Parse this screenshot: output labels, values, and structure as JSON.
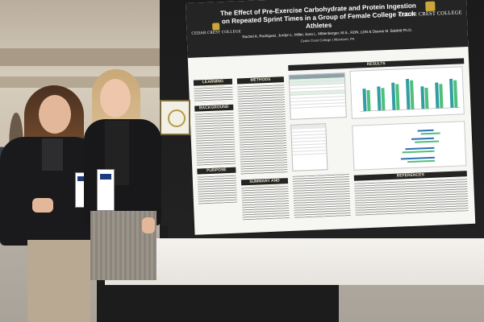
{
  "scene": {
    "description_free": true
  },
  "poster": {
    "title": "The Effect of Pre-Exercise Carbohydrate and Protein Ingestion on Repeated Sprint Times in a Group of Female College Track Athletes",
    "authors": "Rachel A. Rodriguez, Jordyn L. Miller, Sara L. Mittenberger, M.S., RDN, LDN & Dianne M. Babbitt Ph.D.",
    "affiliation": "Cedar Crest College | Allentown, PA",
    "logo_left": "CEDAR CREST COLLEGE",
    "logo_right": "CEDAR CREST COLLEGE",
    "sections": {
      "learning_objective": "LEARNING OBJECTIVE",
      "background": "BACKGROUND",
      "purpose": "PURPOSE",
      "methods": "METHODS",
      "results": "RESULTS",
      "summary": "SUMMARY AND CONCLUSIONS",
      "references": "REFERENCES"
    }
  },
  "colors": {
    "poster_header": "#242424",
    "poster_accent": "#c9a63a",
    "chart_teal": "#2f9ea3",
    "chart_green": "#4fbf7a",
    "chart_blue": "#2e6fb0"
  }
}
